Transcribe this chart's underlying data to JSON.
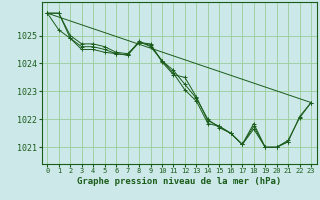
{
  "bg_color": "#cce8e8",
  "grid_color": "#99cc99",
  "line_color": "#1a5c1a",
  "xlabel": "Graphe pression niveau de la mer (hPa)",
  "xlim": [
    -0.5,
    23.5
  ],
  "ylim": [
    1020.4,
    1026.2
  ],
  "yticks": [
    1021,
    1022,
    1023,
    1024,
    1025
  ],
  "xticks": [
    0,
    1,
    2,
    3,
    4,
    5,
    6,
    7,
    8,
    9,
    10,
    11,
    12,
    13,
    14,
    15,
    16,
    17,
    18,
    19,
    20,
    21,
    22,
    23
  ],
  "series": [
    {
      "x": [
        0,
        1,
        2,
        3,
        4,
        5,
        6,
        7,
        8,
        9,
        10,
        11,
        12,
        13,
        14,
        15,
        16,
        17,
        18,
        19,
        20,
        21,
        22,
        23
      ],
      "y": [
        1025.8,
        1025.8,
        1024.9,
        1024.5,
        1024.5,
        1024.4,
        1024.35,
        1024.3,
        1024.75,
        1024.7,
        1024.05,
        1023.6,
        1023.5,
        1022.8,
        1021.95,
        1021.75,
        1021.5,
        1021.1,
        1021.85,
        1021.0,
        1021.0,
        1021.25,
        1022.05,
        1022.6
      ],
      "marker": true
    },
    {
      "x": [
        0,
        1,
        2,
        3,
        4,
        5,
        6,
        7,
        8,
        9,
        10,
        11,
        12,
        13,
        14,
        15,
        16,
        17,
        18,
        19,
        20,
        21
      ],
      "y": [
        1025.8,
        1025.2,
        1024.9,
        1024.6,
        1024.6,
        1024.5,
        1024.35,
        1024.3,
        1024.8,
        1024.6,
        1024.1,
        1023.75,
        1023.25,
        1022.75,
        1022.0,
        1021.7,
        1021.5,
        1021.1,
        1021.75,
        1021.0,
        1021.0,
        1021.2
      ],
      "marker": true
    },
    {
      "x": [
        0,
        1,
        2,
        3,
        4,
        5,
        6,
        7,
        8,
        9,
        10,
        11,
        12,
        13,
        14,
        15,
        16,
        17,
        18,
        19,
        20,
        21,
        22,
        23
      ],
      "y": [
        1025.8,
        1025.8,
        1025.0,
        1024.7,
        1024.7,
        1024.6,
        1024.4,
        1024.35,
        1024.75,
        1024.65,
        1024.1,
        1023.65,
        1023.05,
        1022.65,
        1021.85,
        1021.75,
        1021.5,
        1021.1,
        1021.65,
        1021.0,
        1021.0,
        1021.2,
        1022.1,
        1022.6
      ],
      "marker": true
    },
    {
      "x": [
        0,
        23
      ],
      "y": [
        1025.8,
        1022.6
      ],
      "marker": false
    }
  ]
}
